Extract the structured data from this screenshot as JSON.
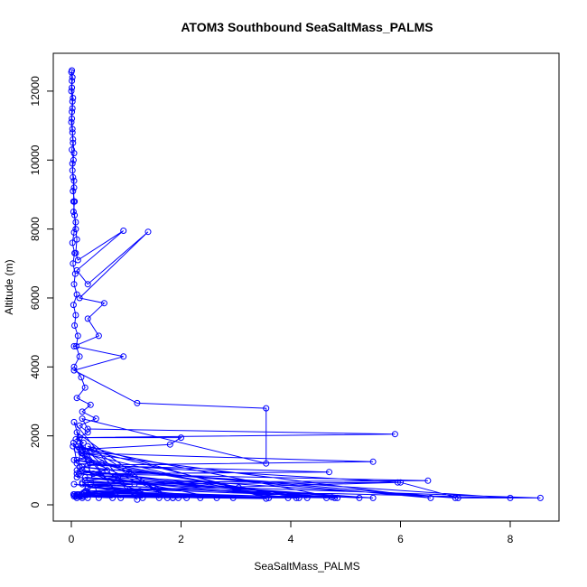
{
  "chart_data": {
    "type": "line",
    "title": "ATOM3 Southbound SeaSaltMass_PALMS",
    "xlabel": "SeaSaltMass_PALMS",
    "ylabel": "Altitude (m)",
    "xlim": [
      0,
      8.6
    ],
    "ylim": [
      0,
      12700
    ],
    "x_ticks": [
      0,
      2,
      4,
      6,
      8
    ],
    "y_ticks": [
      0,
      2000,
      4000,
      6000,
      8000,
      10000,
      12000
    ],
    "grid": false,
    "legend": "none",
    "color": "#0000ff",
    "series": [
      {
        "x": [
          0.01,
          0.02,
          0.01,
          0.03,
          0.02,
          0.01,
          0.02,
          0.03,
          0.05,
          0.02,
          0.03,
          0.05,
          0.04,
          0.06,
          0.08,
          0.1,
          0.08,
          0.12,
          0.95,
          0.1,
          0.3,
          1.4,
          0.15,
          0.6,
          0.3,
          0.5,
          0.05,
          0.95,
          0.05,
          1.2,
          3.55,
          3.55,
          0.2,
          0.3,
          5.9,
          0.15,
          2.0,
          1.8,
          0.1,
          0.2,
          5.5,
          0.3,
          4.7,
          0.4,
          6.5,
          0.2,
          8.55,
          7.05,
          6.0,
          0.1,
          0.04,
          0.2,
          1.05,
          8.0,
          0.3,
          5.5,
          0.25,
          5.25,
          0.2,
          2.65,
          0.1,
          4.3,
          0.05,
          3.05,
          0.03,
          4.85,
          0.1,
          7.0,
          0.15,
          6.55,
          0.2,
          3.6,
          0.3,
          1.75,
          0.1,
          0.5,
          0.05,
          1.2,
          0.15,
          0.9,
          0.2,
          1.85,
          0.3,
          4.1,
          0.1,
          4.65,
          0.2,
          1.6,
          0.05,
          2.1,
          0.1
        ],
        "y": [
          12600,
          12400,
          12100,
          11800,
          11500,
          11200,
          10900,
          10600,
          10200,
          9900,
          9500,
          9200,
          8800,
          8400,
          8000,
          7700,
          7300,
          7100,
          7950,
          6800,
          6400,
          7920,
          6000,
          5850,
          5400,
          4900,
          4600,
          4300,
          3900,
          2950,
          2800,
          1200,
          2500,
          2200,
          2050,
          1950,
          1950,
          1750,
          1600,
          1500,
          1250,
          1150,
          950,
          900,
          700,
          650,
          200,
          200,
          650,
          1200,
          1800,
          1400,
          950,
          200,
          500,
          200,
          800,
          200,
          600,
          200,
          1000,
          200,
          1300,
          500,
          1700,
          200,
          900,
          200,
          1100,
          200,
          1500,
          200,
          1700,
          200,
          2100,
          200,
          2400,
          150,
          1800,
          200,
          1600,
          200,
          1300,
          200,
          800,
          200,
          1000,
          200,
          600,
          200,
          300
        ]
      },
      {
        "x": [
          0.0,
          0.01,
          0.0,
          0.02,
          0.01,
          0.0,
          0.02,
          0.03,
          0.01,
          0.04,
          0.02,
          0.05,
          0.03,
          0.06,
          0.04,
          0.08,
          0.05,
          0.02,
          0.06,
          0.03,
          0.07,
          0.05,
          0.1,
          0.04,
          0.08,
          0.06,
          0.12,
          0.09,
          0.15,
          0.05,
          0.18,
          0.25,
          0.1,
          0.35,
          0.2,
          0.45,
          0.15,
          0.3,
          0.08,
          0.22,
          0.12,
          0.4,
          0.18,
          0.28,
          0.1,
          0.55,
          0.2,
          0.65,
          0.14,
          0.85,
          0.25,
          1.15,
          0.3,
          1.25,
          0.18,
          1.85,
          0.22,
          1.55,
          0.12,
          2.35,
          0.28,
          3.55,
          0.16,
          4.15,
          0.24,
          4.75,
          0.35,
          5.95,
          0.26,
          4.8,
          0.32,
          3.95,
          0.2,
          2.95,
          0.15,
          1.95,
          0.1,
          1.3,
          0.12,
          0.75,
          0.08,
          0.3,
          0.06,
          0.2,
          0.05,
          0.1,
          0.04
        ],
        "y": [
          12550,
          12300,
          12000,
          11700,
          11400,
          11100,
          10800,
          10500,
          10300,
          10000,
          9700,
          9400,
          9100,
          8800,
          8500,
          8200,
          7900,
          7600,
          7300,
          7000,
          6700,
          6400,
          6100,
          5800,
          5500,
          5200,
          4900,
          4600,
          4300,
          4000,
          3700,
          3400,
          3100,
          2900,
          2700,
          2500,
          2300,
          2100,
          1900,
          1800,
          1700,
          1600,
          1500,
          1400,
          1300,
          1200,
          1100,
          1000,
          900,
          800,
          700,
          600,
          500,
          400,
          300,
          200,
          350,
          450,
          300,
          200,
          400,
          180,
          250,
          200,
          350,
          220,
          600,
          650,
          400,
          200,
          300,
          200,
          250,
          200,
          300,
          200,
          250,
          200,
          300,
          200,
          250,
          200,
          300,
          200,
          250,
          200,
          300
        ]
      }
    ]
  }
}
